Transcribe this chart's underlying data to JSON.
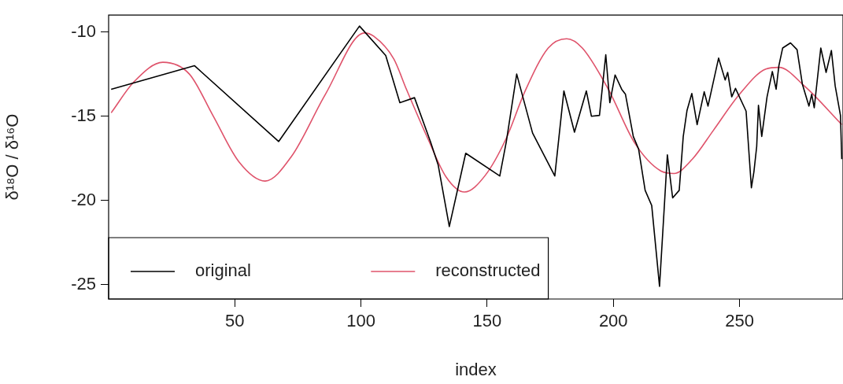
{
  "chart_data": {
    "type": "line",
    "xlabel": "index",
    "ylabel": "δ¹⁸O / δ¹⁶O",
    "xlim": [
      0,
      291
    ],
    "ylim": [
      -25.85,
      -9.0
    ],
    "xticks": [
      50,
      100,
      150,
      200,
      250
    ],
    "yticks": [
      -25,
      -20,
      -15,
      -10
    ],
    "grid": false,
    "legend": "bottom left",
    "marker": "none",
    "line_style": "solid",
    "series": [
      {
        "name": "original",
        "color": "#000000",
        "x": [
          1,
          34,
          67.4,
          99.4,
          109.8,
          115.4,
          121.2,
          127.5,
          130.6,
          135,
          141.5,
          155,
          157.6,
          161.7,
          168,
          176.8,
          180.4,
          184.6,
          189.3,
          191.3,
          194.5,
          197,
          198.6,
          200.7,
          203.3,
          204.8,
          207.9,
          210,
          212.6,
          215.2,
          218.3,
          219.9,
          221.4,
          223.5,
          226.1,
          227.7,
          229.2,
          231.1,
          233.2,
          236,
          237.5,
          241.7,
          244.3,
          245.3,
          246.9,
          248.4,
          252.6,
          254.7,
          255.7,
          256.8,
          257.5,
          258.8,
          260.9,
          263,
          264.5,
          265.6,
          267.1,
          270.2,
          272.8,
          274.9,
          277.5,
          278.6,
          279.6,
          282.2,
          284.3,
          286.4,
          287.9,
          290,
          290.5
        ],
        "values": [
          -13.4,
          -12.0,
          -16.5,
          -9.65,
          -11.4,
          -14.2,
          -13.9,
          -16.5,
          -17.9,
          -21.55,
          -17.2,
          -18.55,
          -16.5,
          -12.5,
          -16.0,
          -18.55,
          -13.5,
          -15.95,
          -13.5,
          -15.0,
          -14.95,
          -11.35,
          -14.2,
          -12.55,
          -13.4,
          -13.7,
          -16.2,
          -16.95,
          -19.4,
          -20.3,
          -25.1,
          -21.1,
          -17.3,
          -19.85,
          -19.4,
          -16.2,
          -14.65,
          -13.65,
          -15.5,
          -13.55,
          -14.4,
          -11.55,
          -12.85,
          -12.4,
          -13.85,
          -13.35,
          -14.7,
          -19.25,
          -18.3,
          -16.8,
          -14.35,
          -16.2,
          -13.85,
          -12.35,
          -13.4,
          -12.0,
          -10.95,
          -10.65,
          -11.05,
          -13.1,
          -14.4,
          -13.7,
          -14.5,
          -10.95,
          -12.4,
          -11.1,
          -13.2,
          -14.95,
          -17.55
        ]
      },
      {
        "name": "reconstructed",
        "color": "#df536b",
        "x": [
          1,
          10.1,
          21.5,
          32,
          41.3,
          51.6,
          62,
          72.4,
          85.9,
          101.4,
          105,
          113,
          118,
          126.4,
          133.7,
          141,
          149.3,
          157.6,
          164.9,
          174.2,
          181.5,
          187.7,
          198,
          208.5,
          218.8,
          224,
          231.3,
          239.6,
          250,
          260.4,
          265.6,
          276,
          290.5
        ],
        "values": [
          -14.8,
          -12.95,
          -11.8,
          -12.5,
          -14.95,
          -17.7,
          -18.85,
          -17.4,
          -13.7,
          -10.06,
          -10.25,
          -11.6,
          -13.4,
          -16.3,
          -18.6,
          -19.5,
          -18.5,
          -16.3,
          -13.55,
          -10.95,
          -10.4,
          -10.95,
          -13.4,
          -16.6,
          -18.25,
          -18.4,
          -17.55,
          -15.85,
          -13.7,
          -12.2,
          -12.1,
          -13.25,
          -15.5
        ]
      }
    ]
  }
}
